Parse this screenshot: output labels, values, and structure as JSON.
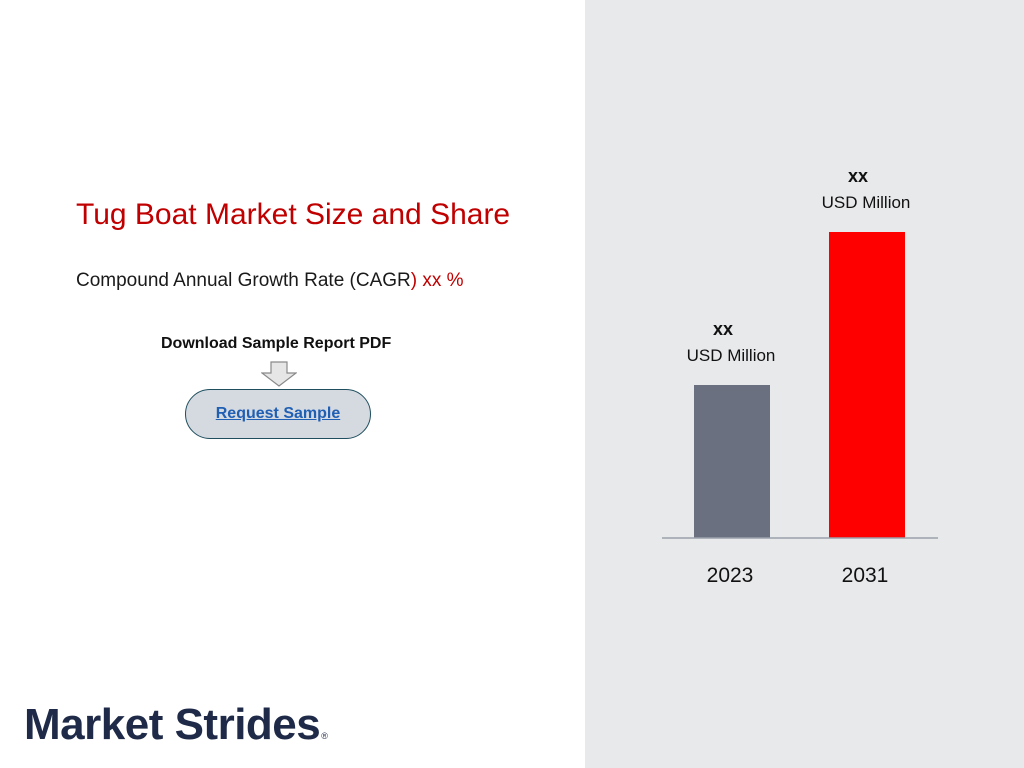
{
  "page": {
    "title": "Tug Boat Market Size and Share",
    "cagr_prefix": "Compound Annual Growth Rate (CAGR",
    "cagr_suffix": ") xx %",
    "download_label": "Download Sample Report PDF",
    "request_button_label": "Request Sample",
    "logo_text": "Market Strides",
    "logo_mark": "®"
  },
  "colors": {
    "accent_red": "#c00000",
    "bar_2023": "#6b7080",
    "bar_2031": "#ff0000",
    "panel_bg": "#e8e9eb",
    "logo": "#1e2a47"
  },
  "chart_data": {
    "type": "bar",
    "categories": [
      "2023",
      "2031"
    ],
    "values": [
      1,
      2
    ],
    "value_labels": [
      "xx",
      "xx"
    ],
    "unit_labels": [
      "USD Million",
      "USD Million"
    ],
    "bar_colors": [
      "#6b7080",
      "#ff0000"
    ],
    "title": "",
    "xlabel": "",
    "ylabel": "",
    "ylim": [
      0,
      2
    ],
    "grid": false,
    "legend": "none"
  }
}
